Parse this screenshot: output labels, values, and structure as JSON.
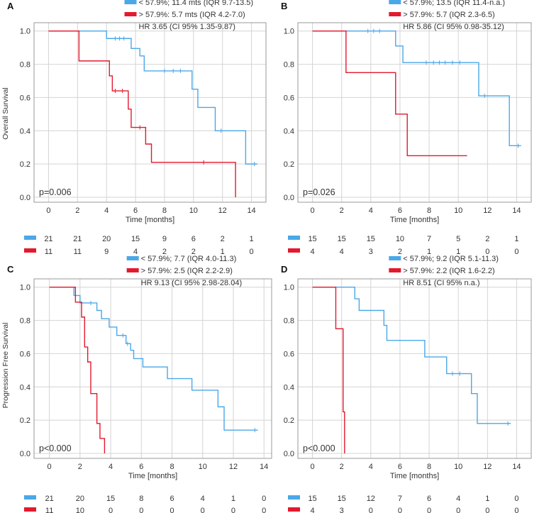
{
  "figure": {
    "ylabel_os": "Overall Survival",
    "ylabel_pfs": "Progression Free Survival"
  },
  "colors": {
    "blue": "#4aa8e8",
    "red": "#e3192e",
    "grid": "#d4d4d4",
    "axis": "#9a9a9a",
    "text": "#333333"
  },
  "chart_data": [
    {
      "panel": "A",
      "type": "line",
      "title": "",
      "xlabel": "Time [months]",
      "ylabel": "Overall Survival",
      "xlim": [
        -1,
        15
      ],
      "ylim": [
        -0.03,
        1.05
      ],
      "xticks": [
        "0",
        "2",
        "4",
        "6",
        "8",
        "10",
        "12",
        "14"
      ],
      "yticks": [
        "0.0",
        "0.2",
        "0.4",
        "0.6",
        "0.8",
        "1.0"
      ],
      "pvalue": "p=0.006",
      "legend": [
        {
          "color": "blue",
          "text": "< 57.9%; 11.4 mts (IQR 9.7-13.5)"
        },
        {
          "color": "red",
          "text": "> 57.9%: 5.7 mts (IQR 4.2-7.0)"
        }
      ],
      "hr_text": "HR 3.65 (CI 95% 1.35-9.87)",
      "series": [
        {
          "name": "< 57.9%",
          "color": "blue",
          "steps": [
            [
              0,
              1.0
            ],
            [
              4.0,
              0.955
            ],
            [
              5.7,
              0.895
            ],
            [
              6.3,
              0.85
            ],
            [
              6.6,
              0.76
            ],
            [
              9.9,
              0.65
            ],
            [
              10.3,
              0.54
            ],
            [
              11.5,
              0.4
            ],
            [
              13.6,
              0.2
            ],
            [
              14.4,
              0.2
            ]
          ],
          "censors": [
            [
              4.6,
              0.955
            ],
            [
              4.9,
              0.955
            ],
            [
              5.2,
              0.955
            ],
            [
              8.0,
              0.76
            ],
            [
              8.6,
              0.76
            ],
            [
              9.1,
              0.76
            ],
            [
              11.9,
              0.4
            ],
            [
              14.2,
              0.2
            ]
          ]
        },
        {
          "name": "> 57.9%",
          "color": "red",
          "steps": [
            [
              0,
              1.0
            ],
            [
              2.1,
              0.82
            ],
            [
              4.2,
              0.73
            ],
            [
              4.4,
              0.64
            ],
            [
              5.5,
              0.53
            ],
            [
              5.7,
              0.42
            ],
            [
              6.7,
              0.32
            ],
            [
              7.1,
              0.21
            ],
            [
              12.9,
              0.0
            ],
            [
              12.9,
              0.0
            ]
          ],
          "censors": [
            [
              4.6,
              0.64
            ],
            [
              5.1,
              0.64
            ],
            [
              6.3,
              0.42
            ],
            [
              10.7,
              0.21
            ]
          ]
        }
      ],
      "risk_table": {
        "x": [
          "0",
          "2",
          "4",
          "6",
          "8",
          "10",
          "12",
          "14"
        ],
        "rows": [
          {
            "color": "blue",
            "counts": [
              "21",
              "21",
              "20",
              "15",
              "9",
              "6",
              "2",
              "1"
            ]
          },
          {
            "color": "red",
            "counts": [
              "11",
              "11",
              "9",
              "4",
              "2",
              "2",
              "1",
              "0"
            ]
          }
        ]
      }
    },
    {
      "panel": "B",
      "type": "line",
      "title": "",
      "xlabel": "Time [months]",
      "ylabel": "",
      "xlim": [
        -1,
        15
      ],
      "ylim": [
        -0.03,
        1.05
      ],
      "xticks": [
        "0",
        "2",
        "4",
        "6",
        "8",
        "10",
        "12",
        "14"
      ],
      "yticks": [
        "0.0",
        "0.2",
        "0.4",
        "0.6",
        "0.8",
        "1.0"
      ],
      "pvalue": "p=0.026",
      "legend": [
        {
          "color": "blue",
          "text": "< 57.9%; 13.5 (IQR 11.4-n.a.)"
        },
        {
          "color": "red",
          "text": "> 57.9%: 5.7 (IQR 2.3-6.5)"
        }
      ],
      "hr_text": "HR 5.86 (CI 95% 0.98-35.12)",
      "series": [
        {
          "name": "< 57.9%",
          "color": "blue",
          "steps": [
            [
              0,
              1.0
            ],
            [
              5.7,
              0.91
            ],
            [
              6.2,
              0.81
            ],
            [
              11.4,
              0.61
            ],
            [
              13.5,
              0.31
            ],
            [
              14.3,
              0.31
            ]
          ],
          "censors": [
            [
              3.8,
              1.0
            ],
            [
              4.2,
              1.0
            ],
            [
              4.6,
              1.0
            ],
            [
              7.8,
              0.81
            ],
            [
              8.3,
              0.81
            ],
            [
              8.7,
              0.81
            ],
            [
              9.1,
              0.81
            ],
            [
              9.6,
              0.81
            ],
            [
              10.1,
              0.81
            ],
            [
              11.8,
              0.61
            ],
            [
              14.1,
              0.31
            ]
          ]
        },
        {
          "name": "> 57.9%",
          "color": "red",
          "steps": [
            [
              0,
              1.0
            ],
            [
              2.3,
              0.75
            ],
            [
              5.7,
              0.5
            ],
            [
              6.5,
              0.25
            ],
            [
              10.6,
              0.25
            ]
          ],
          "censors": []
        }
      ],
      "risk_table": {
        "x": [
          "0",
          "2",
          "4",
          "6",
          "8",
          "10",
          "12",
          "14"
        ],
        "rows": [
          {
            "color": "blue",
            "counts": [
              "15",
              "15",
              "15",
              "10",
              "7",
              "5",
              "2",
              "1"
            ]
          },
          {
            "color": "red",
            "counts": [
              "4",
              "4",
              "3",
              "2",
              "1",
              "1",
              "0",
              "0"
            ]
          }
        ]
      }
    },
    {
      "panel": "C",
      "type": "line",
      "title": "",
      "xlabel": "Time [months]",
      "ylabel": "Progression Free Survival",
      "xlim": [
        -1,
        14.5
      ],
      "ylim": [
        -0.03,
        1.05
      ],
      "xticks": [
        "0",
        "2",
        "4",
        "6",
        "8",
        "10",
        "12",
        "14"
      ],
      "yticks": [
        "0.0",
        "0.2",
        "0.4",
        "0.6",
        "0.8",
        "1.0"
      ],
      "pvalue": "p<0.000",
      "legend": [
        {
          "color": "blue",
          "text": "< 57.9%; 7.7 (IQR 4.0-11.3)"
        },
        {
          "color": "red",
          "text": "> 57.9%: 2.5 (IQR 2.2-2.9)"
        }
      ],
      "hr_text": "HR 9.13 (CI 95% 2.98-28.04)",
      "series": [
        {
          "name": "< 57.9%",
          "color": "blue",
          "steps": [
            [
              0,
              1.0
            ],
            [
              1.6,
              0.95
            ],
            [
              2.0,
              0.905
            ],
            [
              3.1,
              0.86
            ],
            [
              3.4,
              0.81
            ],
            [
              3.9,
              0.76
            ],
            [
              4.4,
              0.71
            ],
            [
              5.0,
              0.66
            ],
            [
              5.3,
              0.62
            ],
            [
              5.5,
              0.57
            ],
            [
              6.1,
              0.52
            ],
            [
              7.7,
              0.45
            ],
            [
              9.3,
              0.38
            ],
            [
              11.0,
              0.28
            ],
            [
              11.4,
              0.14
            ],
            [
              13.6,
              0.14
            ]
          ],
          "censors": [
            [
              2.7,
              0.905
            ],
            [
              4.8,
              0.71
            ],
            [
              5.1,
              0.66
            ],
            [
              13.4,
              0.14
            ]
          ]
        },
        {
          "name": "> 57.9%",
          "color": "red",
          "steps": [
            [
              0,
              1.0
            ],
            [
              1.7,
              0.91
            ],
            [
              2.1,
              0.82
            ],
            [
              2.3,
              0.64
            ],
            [
              2.5,
              0.55
            ],
            [
              2.7,
              0.36
            ],
            [
              3.1,
              0.18
            ],
            [
              3.3,
              0.09
            ],
            [
              3.6,
              0.0
            ],
            [
              3.6,
              0.0
            ]
          ],
          "censors": []
        }
      ],
      "risk_table": {
        "x": [
          "0",
          "2",
          "4",
          "6",
          "8",
          "10",
          "12",
          "14"
        ],
        "rows": [
          {
            "color": "blue",
            "counts": [
              "21",
              "20",
              "15",
              "8",
              "6",
              "4",
              "1",
              "0"
            ]
          },
          {
            "color": "red",
            "counts": [
              "11",
              "10",
              "0",
              "0",
              "0",
              "0",
              "0",
              "0"
            ]
          }
        ]
      }
    },
    {
      "panel": "D",
      "type": "line",
      "title": "",
      "xlabel": "Time [months]",
      "ylabel": "",
      "xlim": [
        -1,
        15
      ],
      "ylim": [
        -0.03,
        1.05
      ],
      "xticks": [
        "0",
        "2",
        "4",
        "6",
        "8",
        "10",
        "12",
        "14"
      ],
      "yticks": [
        "0.0",
        "0.2",
        "0.4",
        "0.6",
        "0.8",
        "1.0"
      ],
      "pvalue": "p<0.000",
      "legend": [
        {
          "color": "blue",
          "text": "< 57.9%; 9.2 (IQR 5.1-11.3)"
        },
        {
          "color": "red",
          "text": "> 57.9%: 2.2 (IQR 1.6-2.2)"
        }
      ],
      "hr_text": "HR 8.51 (CI 95% n.a.)",
      "series": [
        {
          "name": "< 57.9%",
          "color": "blue",
          "steps": [
            [
              0,
              1.0
            ],
            [
              2.9,
              0.93
            ],
            [
              3.2,
              0.86
            ],
            [
              4.9,
              0.77
            ],
            [
              5.1,
              0.68
            ],
            [
              7.7,
              0.58
            ],
            [
              9.2,
              0.48
            ],
            [
              10.9,
              0.36
            ],
            [
              11.3,
              0.18
            ],
            [
              13.6,
              0.18
            ]
          ],
          "censors": [
            [
              9.6,
              0.48
            ],
            [
              10.1,
              0.48
            ],
            [
              13.4,
              0.18
            ]
          ]
        },
        {
          "name": "> 57.9%",
          "color": "red",
          "steps": [
            [
              0,
              1.0
            ],
            [
              1.6,
              0.75
            ],
            [
              2.1,
              0.25
            ],
            [
              2.2,
              0.0
            ],
            [
              2.2,
              0.0
            ]
          ],
          "censors": []
        }
      ],
      "risk_table": {
        "x": [
          "0",
          "2",
          "4",
          "6",
          "8",
          "10",
          "12",
          "14"
        ],
        "rows": [
          {
            "color": "blue",
            "counts": [
              "15",
              "15",
              "12",
              "7",
              "6",
              "4",
              "1",
              "0"
            ]
          },
          {
            "color": "red",
            "counts": [
              "4",
              "3",
              "0",
              "0",
              "0",
              "0",
              "0",
              "0"
            ]
          }
        ]
      }
    }
  ]
}
